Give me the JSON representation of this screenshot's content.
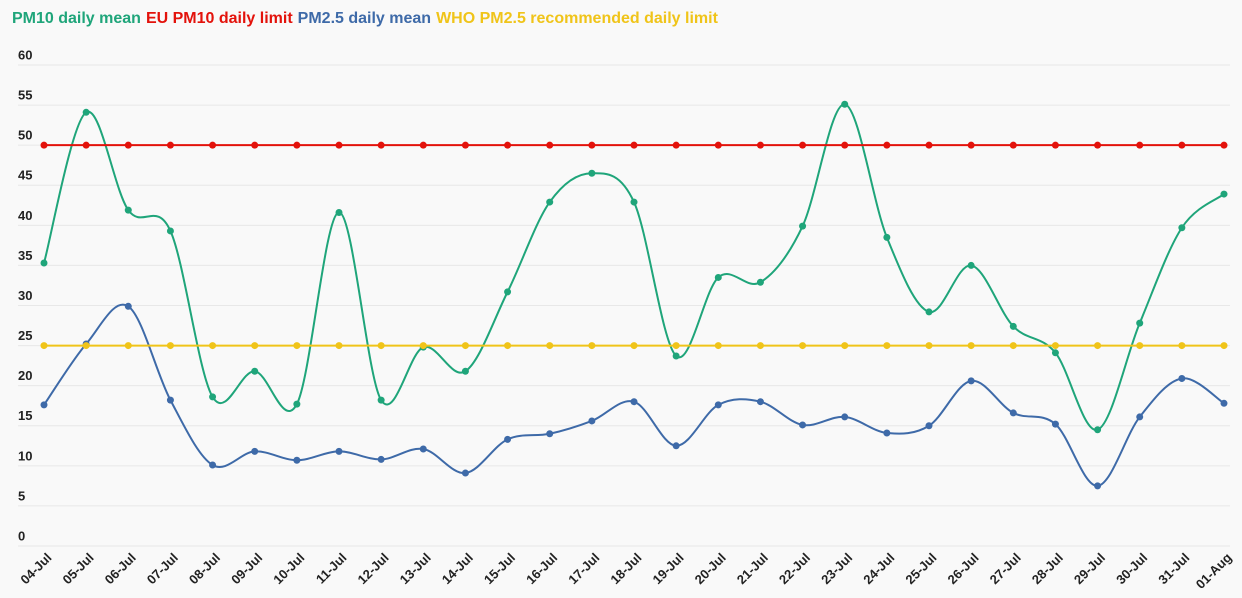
{
  "chart_data": {
    "type": "line",
    "categories": [
      "04-Jul",
      "05-Jul",
      "06-Jul",
      "07-Jul",
      "08-Jul",
      "09-Jul",
      "10-Jul",
      "11-Jul",
      "12-Jul",
      "13-Jul",
      "14-Jul",
      "15-Jul",
      "16-Jul",
      "17-Jul",
      "18-Jul",
      "19-Jul",
      "20-Jul",
      "21-Jul",
      "22-Jul",
      "23-Jul",
      "24-Jul",
      "25-Jul",
      "26-Jul",
      "27-Jul",
      "28-Jul",
      "29-Jul",
      "30-Jul",
      "31-Jul",
      "01-Aug"
    ],
    "series": [
      {
        "name": "PM10 daily mean",
        "color": "#1fa57a",
        "values": [
          35.3,
          54.1,
          41.9,
          39.3,
          18.6,
          21.8,
          17.7,
          41.6,
          18.2,
          24.8,
          21.8,
          31.7,
          42.9,
          46.5,
          42.9,
          23.7,
          33.5,
          32.9,
          39.9,
          55.1,
          38.5,
          29.2,
          35.0,
          27.4,
          24.1,
          14.5,
          27.8,
          39.7,
          43.9
        ]
      },
      {
        "name": "EU PM10 daily limit",
        "color": "#e3120b",
        "values": [
          50,
          50,
          50,
          50,
          50,
          50,
          50,
          50,
          50,
          50,
          50,
          50,
          50,
          50,
          50,
          50,
          50,
          50,
          50,
          50,
          50,
          50,
          50,
          50,
          50,
          50,
          50,
          50,
          50
        ]
      },
      {
        "name": "PM2.5 daily mean",
        "color": "#3e6aa8",
        "values": [
          17.6,
          25.2,
          29.9,
          18.2,
          10.1,
          11.8,
          10.7,
          11.8,
          10.8,
          12.1,
          9.1,
          13.3,
          14.0,
          15.6,
          18.0,
          12.5,
          17.6,
          18.0,
          15.1,
          16.1,
          14.1,
          15.0,
          20.6,
          16.6,
          15.2,
          7.5,
          16.1,
          20.9,
          17.8
        ]
      },
      {
        "name": "WHO PM2.5 recommended daily limit",
        "color": "#f0c419",
        "values": [
          25,
          25,
          25,
          25,
          25,
          25,
          25,
          25,
          25,
          25,
          25,
          25,
          25,
          25,
          25,
          25,
          25,
          25,
          25,
          25,
          25,
          25,
          25,
          25,
          25,
          25,
          25,
          25,
          25
        ]
      }
    ],
    "ylim": [
      0,
      60
    ],
    "yticks": [
      0,
      5,
      10,
      15,
      20,
      25,
      30,
      35,
      40,
      45,
      50,
      55,
      60
    ],
    "grid": true
  }
}
